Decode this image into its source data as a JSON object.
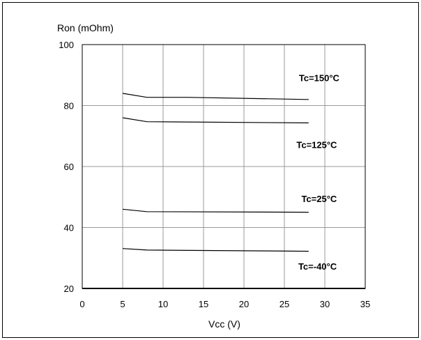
{
  "chart_data": {
    "type": "line",
    "title": "",
    "xlabel": "Vcc (V)",
    "ylabel": "Ron (mOhm)",
    "xlim": [
      0,
      35
    ],
    "ylim": [
      20,
      100
    ],
    "xticks": [
      0,
      5,
      10,
      15,
      20,
      25,
      30,
      35
    ],
    "yticks": [
      20,
      40,
      60,
      80,
      100
    ],
    "grid": true,
    "legend": "inline labels",
    "colors": {
      "line": "#000000",
      "grid": "#999999",
      "axis": "#000000",
      "frame": "#000000"
    },
    "series": [
      {
        "name": "Tc=150°C",
        "x": [
          5,
          8,
          13,
          28
        ],
        "y": [
          84,
          82.7,
          82.7,
          82.0
        ]
      },
      {
        "name": "Tc=125°C",
        "x": [
          5,
          8,
          28
        ],
        "y": [
          76,
          74.7,
          74.3
        ]
      },
      {
        "name": "Tc=25°C",
        "x": [
          5,
          8,
          28
        ],
        "y": [
          46,
          45.2,
          45.0
        ]
      },
      {
        "name": "Tc=-40°C",
        "x": [
          5,
          8,
          28
        ],
        "y": [
          33.1,
          32.6,
          32.2
        ]
      }
    ]
  }
}
